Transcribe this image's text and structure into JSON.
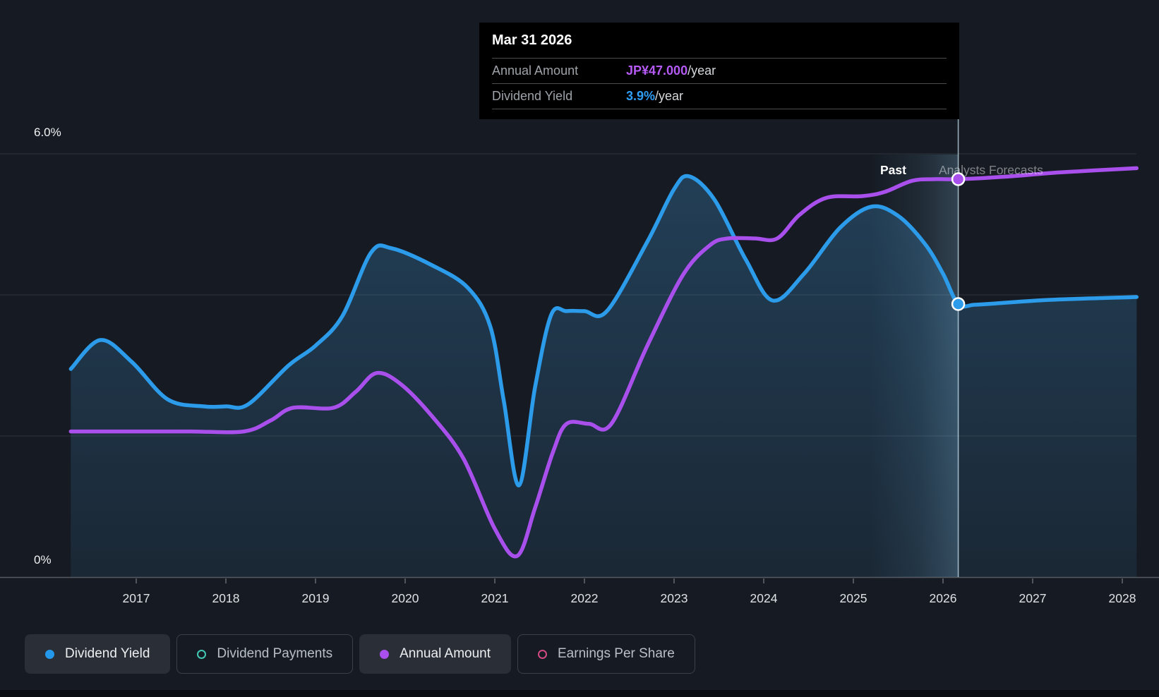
{
  "y_axis": {
    "top_label": "6.0%",
    "bottom_label": "0%"
  },
  "x_axis": {
    "years": [
      "2017",
      "2018",
      "2019",
      "2020",
      "2021",
      "2022",
      "2023",
      "2024",
      "2025",
      "2026",
      "2027",
      "2028"
    ]
  },
  "annotations": {
    "past": "Past",
    "forecast": "Analysts Forecasts"
  },
  "tooltip": {
    "date": "Mar 31 2026",
    "rows": [
      {
        "label": "Annual Amount",
        "value": "JP¥47.000",
        "suffix": "/year",
        "color": "#b55af5"
      },
      {
        "label": "Dividend Yield",
        "value": "3.9%",
        "suffix": "/year",
        "color": "#2e9df3"
      }
    ]
  },
  "legend": [
    {
      "label": "Dividend Yield",
      "color": "#2499eb",
      "style": "filled",
      "active": true
    },
    {
      "label": "Dividend Payments",
      "color": "#43c8b5",
      "style": "ring",
      "active": false
    },
    {
      "label": "Annual Amount",
      "color": "#a84fec",
      "style": "filled",
      "active": true
    },
    {
      "label": "Earnings Per Share",
      "color": "#d14b82",
      "style": "ring",
      "active": false
    }
  ],
  "chart_data": {
    "type": "line",
    "title": "Dividend yield history and analysts forecasts",
    "x_range": [
      2016.27,
      2028.16
    ],
    "x_ticks": [
      2017,
      2018,
      2019,
      2020,
      2021,
      2022,
      2023,
      2024,
      2025,
      2026,
      2027,
      2028
    ],
    "yield_axis": {
      "unit": "%",
      "min": 0,
      "max": 6,
      "gridlines": [
        2,
        4,
        6
      ],
      "top_label": "6.0%",
      "bottom_label": "0%"
    },
    "amount_axis": {
      "unit": "JP¥"
    },
    "divider_year": 2026.17,
    "highlight_band_years": [
      2025.19,
      2026.17
    ],
    "legend_position": "bottom",
    "grid": true,
    "series": [
      {
        "name": "Dividend Yield",
        "unit": "%",
        "axis": "yield",
        "color": "#2b9bea",
        "area_fill": true,
        "points": [
          [
            2016.27,
            2.95
          ],
          [
            2016.6,
            3.36
          ],
          [
            2016.95,
            3.05
          ],
          [
            2017.35,
            2.52
          ],
          [
            2017.75,
            2.42
          ],
          [
            2018.0,
            2.42
          ],
          [
            2018.25,
            2.45
          ],
          [
            2018.7,
            3.0
          ],
          [
            2019.0,
            3.28
          ],
          [
            2019.3,
            3.7
          ],
          [
            2019.62,
            4.6
          ],
          [
            2019.85,
            4.66
          ],
          [
            2020.3,
            4.42
          ],
          [
            2020.7,
            4.1
          ],
          [
            2020.95,
            3.55
          ],
          [
            2021.1,
            2.5
          ],
          [
            2021.27,
            1.3
          ],
          [
            2021.45,
            2.7
          ],
          [
            2021.63,
            3.72
          ],
          [
            2021.8,
            3.77
          ],
          [
            2022.0,
            3.77
          ],
          [
            2022.25,
            3.77
          ],
          [
            2022.7,
            4.75
          ],
          [
            2023.0,
            5.5
          ],
          [
            2023.17,
            5.68
          ],
          [
            2023.45,
            5.35
          ],
          [
            2023.8,
            4.5
          ],
          [
            2024.1,
            3.92
          ],
          [
            2024.45,
            4.3
          ],
          [
            2024.85,
            4.95
          ],
          [
            2025.2,
            5.25
          ],
          [
            2025.5,
            5.12
          ],
          [
            2025.8,
            4.72
          ],
          [
            2026.0,
            4.3
          ],
          [
            2026.17,
            3.87
          ],
          [
            2026.35,
            3.86
          ],
          [
            2026.6,
            3.88
          ],
          [
            2027.2,
            3.93
          ],
          [
            2028.16,
            3.97
          ]
        ]
      },
      {
        "name": "Annual Amount",
        "unit": "JP¥",
        "axis": "amount",
        "color": "#a84fec",
        "area_fill": false,
        "points": [
          [
            2016.27,
            17.2
          ],
          [
            2017.0,
            17.2
          ],
          [
            2017.6,
            17.2
          ],
          [
            2018.2,
            17.2
          ],
          [
            2018.5,
            18.5
          ],
          [
            2018.75,
            20.0
          ],
          [
            2019.2,
            20.0
          ],
          [
            2019.45,
            21.9
          ],
          [
            2019.68,
            24.1
          ],
          [
            2019.95,
            22.8
          ],
          [
            2020.3,
            19.0
          ],
          [
            2020.65,
            14.0
          ],
          [
            2021.0,
            5.7
          ],
          [
            2021.25,
            2.5
          ],
          [
            2021.45,
            8.2
          ],
          [
            2021.65,
            14.8
          ],
          [
            2021.8,
            18.1
          ],
          [
            2022.05,
            18.1
          ],
          [
            2022.3,
            18.1
          ],
          [
            2022.7,
            27.3
          ],
          [
            2023.1,
            35.7
          ],
          [
            2023.4,
            39.2
          ],
          [
            2023.6,
            40.0
          ],
          [
            2023.9,
            40.0
          ],
          [
            2024.15,
            40.0
          ],
          [
            2024.4,
            42.8
          ],
          [
            2024.7,
            44.8
          ],
          [
            2025.1,
            45.0
          ],
          [
            2025.35,
            45.5
          ],
          [
            2025.65,
            46.8
          ],
          [
            2025.9,
            47.0
          ],
          [
            2026.17,
            47.0
          ],
          [
            2026.7,
            47.3
          ],
          [
            2027.3,
            47.8
          ],
          [
            2028.16,
            48.3
          ]
        ]
      }
    ],
    "markers": [
      {
        "series": "Dividend Yield",
        "year": 2026.17,
        "value": 3.87,
        "display": "3.9%/year"
      },
      {
        "series": "Annual Amount",
        "year": 2026.17,
        "value": 47.0,
        "display": "JP¥47.000/year"
      }
    ]
  }
}
